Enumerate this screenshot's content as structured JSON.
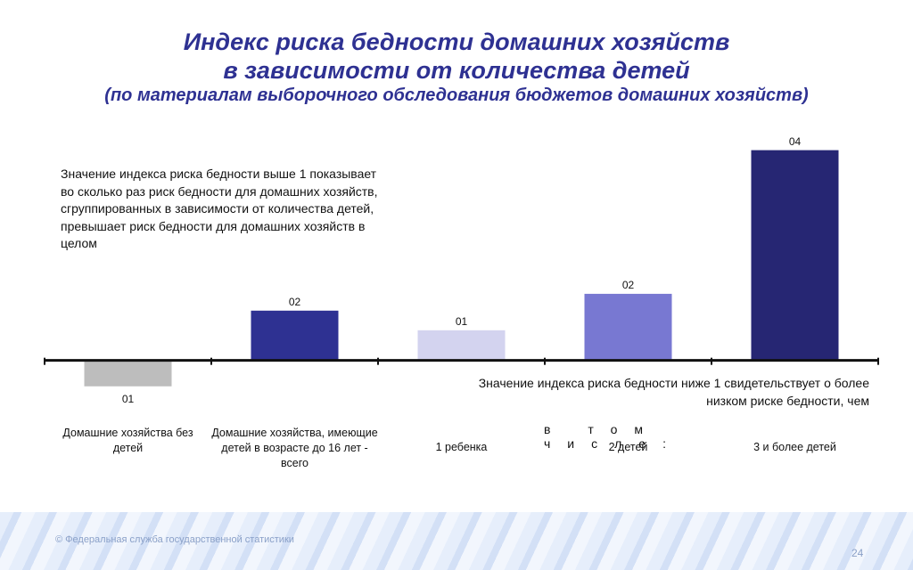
{
  "title": [
    "Индекс риска бедности домашних хозяйств",
    "в зависимости от количества детей",
    "(по материалам выборочного обследования бюджетов домашних хозяйств)"
  ],
  "chart_data": {
    "type": "bar",
    "categories": [
      "Домашние хозяйства без детей",
      "Домашние хозяйства, имеющие детей в возрасте до 16 лет - всего",
      "1 ребенка",
      "2 детей",
      "3 и более детей"
    ],
    "values": [
      0.63,
      1.71,
      1.43,
      1.95,
      4.0
    ],
    "value_labels": [
      "01",
      "02",
      "01",
      "02",
      "04"
    ],
    "colors": [
      "#bdbdbd",
      "#2e3192",
      "#d3d3ef",
      "#7878d2",
      "#262673"
    ],
    "axis_crossing": 1,
    "ylim": [
      0.5,
      4.3
    ],
    "group_label": "в том числе:",
    "annotations": [
      "Значение индекса риска бедности выше 1 показывает во сколько раз риск бедности для домашних хозяйств, сгруппированных в зависимости от количества детей, превышает риск бедности для домашних хозяйств в целом",
      "Значение индекса риска бедности ниже 1 свидетельствует о более низком риске бедности, чем"
    ]
  },
  "footer": {
    "copyright": "© Федеральная служба государственной статистики",
    "page": "24"
  }
}
